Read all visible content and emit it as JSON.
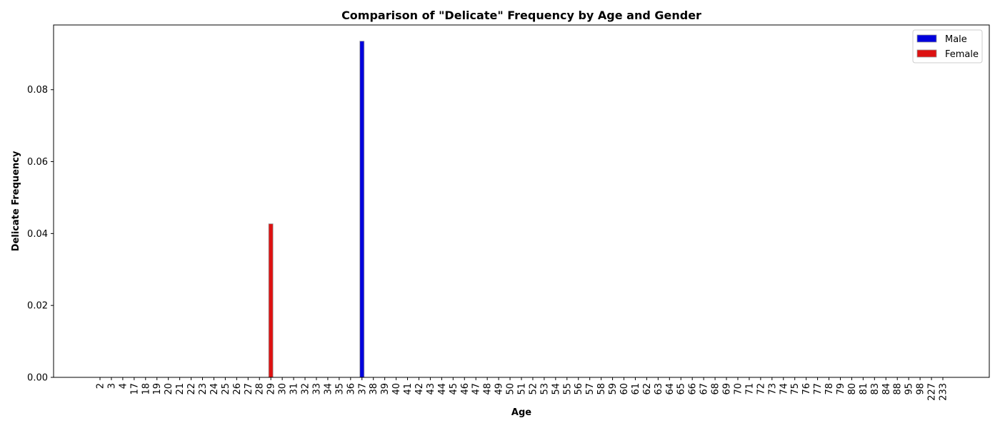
{
  "chart_data": {
    "type": "bar",
    "title": "Comparison of \"Delicate\" Frequency by Age and Gender",
    "xlabel": "Age",
    "ylabel": "Delicate Frequency",
    "categories": [
      "2",
      "3",
      "4",
      "17",
      "18",
      "19",
      "20",
      "21",
      "22",
      "23",
      "24",
      "25",
      "26",
      "27",
      "28",
      "29",
      "30",
      "31",
      "32",
      "33",
      "34",
      "35",
      "36",
      "37",
      "38",
      "39",
      "40",
      "41",
      "42",
      "43",
      "44",
      "45",
      "46",
      "47",
      "48",
      "49",
      "50",
      "51",
      "52",
      "53",
      "54",
      "55",
      "56",
      "57",
      "58",
      "59",
      "60",
      "61",
      "62",
      "63",
      "64",
      "65",
      "66",
      "67",
      "68",
      "69",
      "70",
      "71",
      "72",
      "73",
      "74",
      "75",
      "76",
      "77",
      "78",
      "79",
      "80",
      "81",
      "83",
      "84",
      "88",
      "95",
      "98",
      "227",
      "233"
    ],
    "series": [
      {
        "name": "Male",
        "color": "#0000dd",
        "values": {
          "37": 0.0935
        }
      },
      {
        "name": "Female",
        "color": "#dd1111",
        "values": {
          "29": 0.0427
        }
      }
    ],
    "ylim": [
      0,
      0.098
    ],
    "yticks": [
      "0.00",
      "0.02",
      "0.04",
      "0.06",
      "0.08"
    ],
    "ytick_values": [
      0,
      0.02,
      0.04,
      0.06,
      0.08
    ],
    "legend": "top-right",
    "grid": false
  }
}
